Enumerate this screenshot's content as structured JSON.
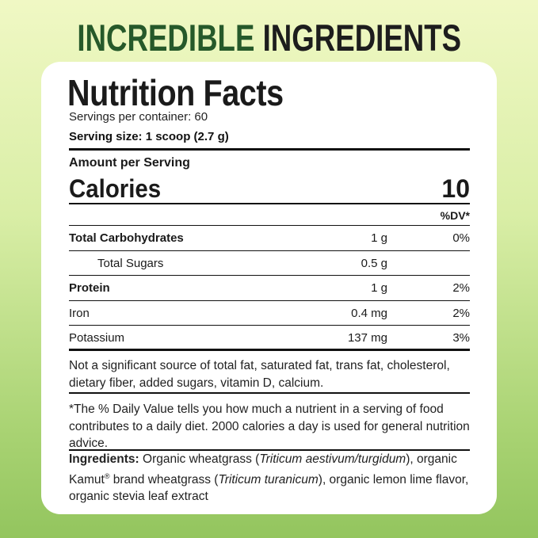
{
  "headline": {
    "green": "INCREDIBLE",
    "dark": "INGREDIENTS",
    "colors": {
      "green": "#26592a",
      "dark": "#1d1d1d"
    }
  },
  "label": {
    "title": "Nutrition Facts",
    "servings_per_container": "Servings per container: 60",
    "serving_size": "Serving size: 1 scoop (2.7 g)",
    "amount_per_serving": "Amount per Serving",
    "calories_label": "Calories",
    "calories_value": "10",
    "dv_header": "%DV*",
    "rows": [
      {
        "name": "Total Carbohydrates",
        "amount": "1 g",
        "dv": "0%"
      },
      {
        "name": "Total Sugars",
        "amount": "0.5 g",
        "dv": ""
      },
      {
        "name": "Protein",
        "amount": "1 g",
        "dv": "2%"
      },
      {
        "name": "Iron",
        "amount": "0.4 mg",
        "dv": "2%"
      },
      {
        "name": "Potassium",
        "amount": "137 mg",
        "dv": "3%"
      }
    ],
    "not_significant": "Not a significant source of total fat, saturated fat, trans fat, cholesterol, dietary fiber, added sugars, vitamin D, calcium.",
    "dv_note": "*The % Daily Value tells you how much a nutrient in a serving of food contributes to a daily diet. 2000 calories a day is used for general nutrition advice.",
    "ingredients": {
      "label": "Ingredients:",
      "p1": " Organic wheatgrass (",
      "i1": "Triticum aestivum/turgidum",
      "p2": "), organic Kamut",
      "reg": "®",
      "p3": " brand wheatgrass (",
      "i2": "Triticum turanicum",
      "p4": "), organic lemon lime flavor, organic stevia leaf extract"
    }
  }
}
